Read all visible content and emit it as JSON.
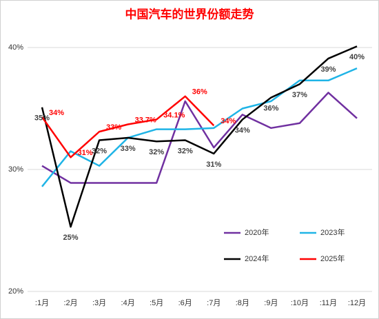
{
  "chart_data": {
    "type": "line",
    "title": "中国汽车的世界份额走势",
    "categories": [
      ":1月",
      ":2月",
      ":3月",
      ":4月",
      ":5月",
      ":6月",
      ":7月",
      ":8月",
      ":9月",
      ":10月",
      ":11月",
      ":12月"
    ],
    "ylim": [
      20,
      40
    ],
    "yticks": [
      {
        "value": 20,
        "label": "20%"
      },
      {
        "value": 30,
        "label": "30%"
      },
      {
        "value": 40,
        "label": "40%"
      }
    ],
    "grid": true,
    "legend": "lower right",
    "series": [
      {
        "name": "2020年",
        "color": "#7030a0",
        "values": [
          30.3,
          28.9,
          28.9,
          28.9,
          28.9,
          35.6,
          31.8,
          34.5,
          33.4,
          33.8,
          36.3,
          34.2
        ]
      },
      {
        "name": "2023年",
        "color": "#1fb4e6",
        "values": [
          28.6,
          31.5,
          30.3,
          32.6,
          33.3,
          33.3,
          33.4,
          35.0,
          35.6,
          37.3,
          37.3,
          38.3
        ]
      },
      {
        "name": "2024年",
        "color": "#000000",
        "values": [
          35.1,
          25.3,
          32.4,
          32.6,
          32.3,
          32.4,
          31.3,
          34.1,
          35.9,
          37.0,
          39.1,
          40.1
        ],
        "value_labels": [
          "35%",
          "25%",
          "32%",
          "33%",
          "32%",
          "32%",
          "31%",
          "34%",
          "36%",
          "37%",
          "39%",
          "40%"
        ]
      },
      {
        "name": "2025年",
        "color": "#ff0000",
        "values": [
          34.3,
          31.0,
          33.1,
          33.7,
          34.1,
          36.0,
          33.6,
          null,
          null,
          null,
          null,
          null
        ],
        "value_labels": [
          "34%",
          "31%",
          "33%",
          "33.7%",
          "34.1%",
          "36%",
          "34%",
          null,
          null,
          null,
          null,
          null
        ]
      }
    ]
  }
}
